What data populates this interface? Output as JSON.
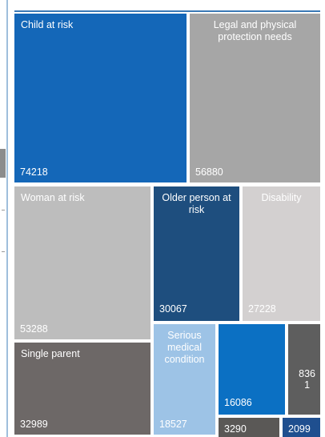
{
  "chart_data": {
    "type": "treemap",
    "title": "",
    "items": [
      {
        "name": "Child at risk",
        "value": 74218,
        "color": "#1467b8",
        "label_align": "left",
        "label_lines": [
          "Child at risk"
        ],
        "value_lines": [
          "74218"
        ],
        "text_color": "#ffffff"
      },
      {
        "name": "Legal and physical protection needs",
        "value": 56880,
        "color": "#a6a6a6",
        "label_align": "center",
        "label_lines": [
          "Legal and physical",
          "protection needs"
        ],
        "value_lines": [
          "56880"
        ],
        "text_color": "#ffffff"
      },
      {
        "name": "Woman at risk",
        "value": 53288,
        "color": "#bdbdbd",
        "label_align": "left",
        "label_lines": [
          "Woman at risk"
        ],
        "value_lines": [
          "53288"
        ],
        "text_color": "#ffffff"
      },
      {
        "name": "Older person at risk",
        "value": 30067,
        "color": "#1e4e7e",
        "label_align": "center",
        "label_lines": [
          "Older person at",
          "risk"
        ],
        "value_lines": [
          "30067"
        ],
        "text_color": "#ffffff"
      },
      {
        "name": "Disability",
        "value": 27228,
        "color": "#d3d0d0",
        "label_align": "center",
        "label_lines": [
          "Disability"
        ],
        "value_lines": [
          "27228"
        ],
        "text_color": "#ffffff"
      },
      {
        "name": "Single parent",
        "value": 32989,
        "color": "#6d6867",
        "label_align": "left",
        "label_lines": [
          "Single parent"
        ],
        "value_lines": [
          "32989"
        ],
        "text_color": "#ffffff"
      },
      {
        "name": "Serious medical condition",
        "value": 18527,
        "color": "#9dc3e6",
        "label_align": "center",
        "label_lines": [
          "Serious",
          "medical",
          "condition"
        ],
        "value_lines": [
          "18527"
        ],
        "text_color": "#ffffff"
      },
      {
        "name": "",
        "value": 16086,
        "color": "#0b70c3",
        "label_align": "center",
        "label_lines": [],
        "value_lines": [
          "16086"
        ],
        "text_color": "#ffffff"
      },
      {
        "name": "",
        "value": 8361,
        "color": "#5e5e5e",
        "label_align": "center",
        "label_lines": [],
        "value_lines": [
          "836",
          "1"
        ],
        "text_color": "#ffffff"
      },
      {
        "name": "",
        "value": 3290,
        "color": "#5a5856",
        "label_align": "center",
        "label_lines": [],
        "value_lines": [
          "3290"
        ],
        "text_color": "#ffffff"
      },
      {
        "name": "",
        "value": 2099,
        "color": "#1f4f8f",
        "label_align": "center",
        "label_lines": [],
        "value_lines": [
          "2099"
        ],
        "text_color": "#ffffff"
      }
    ]
  }
}
